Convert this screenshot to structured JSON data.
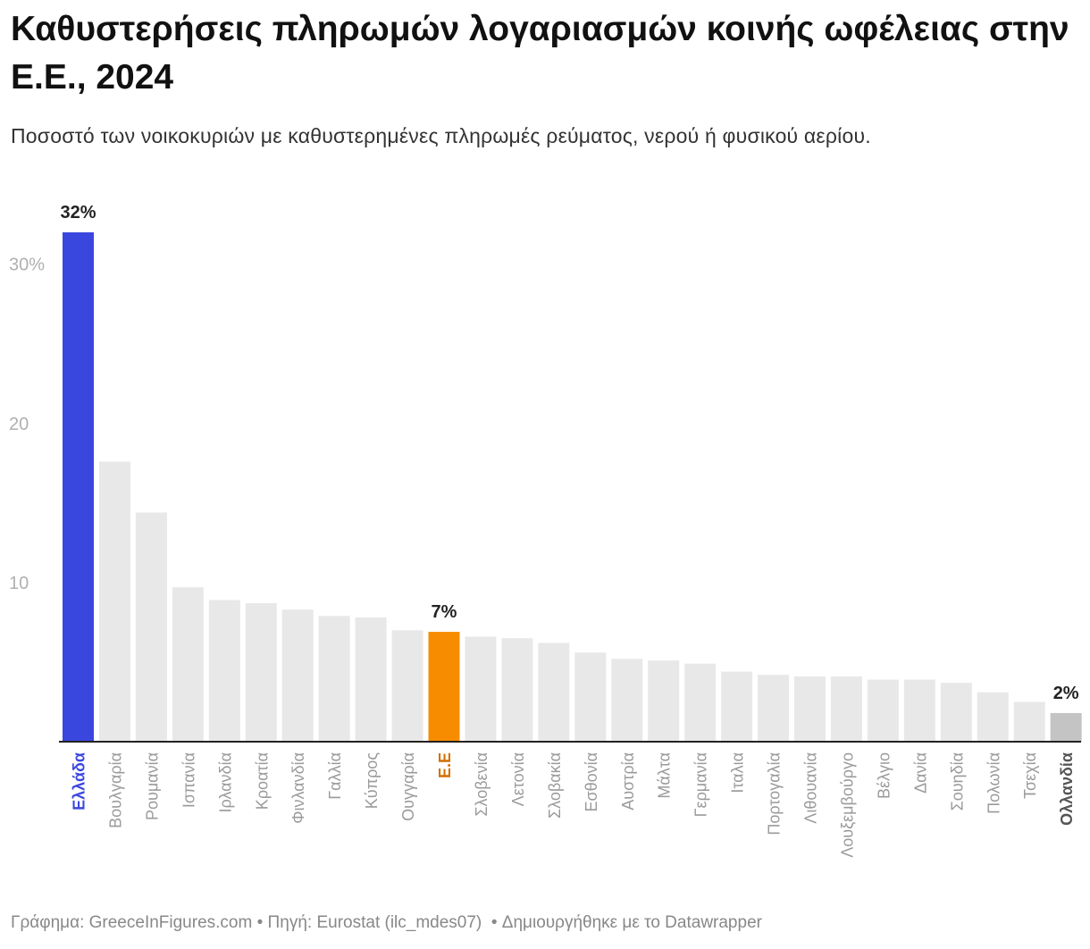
{
  "header": {
    "title": "Καθυστερήσεις πληρωμών λογαριασμών κοινής ωφέλειας στην Ε.Ε., 2024",
    "subtitle": "Ποσοστό των νοικοκυριών με καθυστερημένες πληρωμές ρεύματος, νερού ή φυσικού αερίου."
  },
  "footer": {
    "credit": "Γράφημα: GreeceInFigures.com",
    "source": "Πηγή: Eurostat (ilc_mdes07)",
    "tool": "Δημιουργήθηκε με το Datawrapper",
    "separator": " • "
  },
  "chart_data": {
    "type": "bar",
    "title": "Καθυστερήσεις πληρωμών λογαριασμών κοινής ωφέλειας στην Ε.Ε., 2024",
    "xlabel": "",
    "ylabel": "",
    "ylim": [
      0,
      32
    ],
    "yticks": [
      {
        "value": 10,
        "label": "10"
      },
      {
        "value": 20,
        "label": "20"
      },
      {
        "value": 30,
        "label": "30%"
      }
    ],
    "grid": false,
    "categories": [
      "Ελλάδα",
      "Βουλγαρία",
      "Ρουμανία",
      "Ισπανία",
      "Ιρλανδία",
      "Κροατία",
      "Φινλανδία",
      "Γαλλία",
      "Κύπρος",
      "Ουγγαρία",
      "Ε.Ε",
      "Σλοβενία",
      "Λετονία",
      "Σλοβακία",
      "Εσθονία",
      "Αυστρία",
      "Μάλτα",
      "Γερμανία",
      "Ιταλια",
      "Πορτογαλία",
      "Λιθουανία",
      "Λουξεμβούργο",
      "Βέλγιο",
      "Δανία",
      "Σουηδία",
      "Πολωνία",
      "Τσεχία",
      "Ολλανδία"
    ],
    "values": [
      32.0,
      17.6,
      14.4,
      9.7,
      8.9,
      8.7,
      8.3,
      7.9,
      7.8,
      7.0,
      6.9,
      6.6,
      6.5,
      6.2,
      5.6,
      5.2,
      5.1,
      4.9,
      4.4,
      4.2,
      4.1,
      4.1,
      3.9,
      3.9,
      3.7,
      3.1,
      2.5,
      1.8
    ],
    "highlights": [
      {
        "category": "Ελλάδα",
        "color": "#3a47de",
        "label_color": "#3a47de",
        "bold": true,
        "value_label": "32%"
      },
      {
        "category": "Ε.Ε",
        "color": "#f78c00",
        "label_color": "#d46f00",
        "bold": true,
        "value_label": "7%"
      },
      {
        "category": "Ολλανδία",
        "color": "#c4c4c4",
        "label_color": "#555555",
        "bold": true,
        "value_label": "2%"
      }
    ],
    "default_color": "#e8e8e8",
    "default_label_color": "#9a9a9a",
    "axis_color": "#222222",
    "tick_color": "#b0b0b0"
  }
}
